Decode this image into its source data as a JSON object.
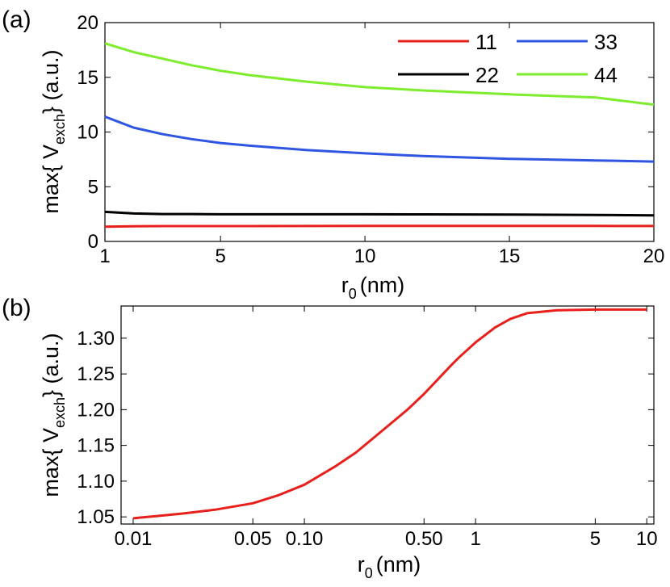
{
  "chart_data": [
    {
      "panel": "(a)",
      "type": "line",
      "xlabel_main": "r",
      "xlabel_sub": "0",
      "xlabel_unit": "(nm)",
      "ylabel_pre": "max{ V",
      "ylabel_sub": "exch",
      "ylabel_post": "} (a.u.)",
      "xlim": [
        1,
        20
      ],
      "ylim": [
        0,
        20
      ],
      "xticks": [
        1,
        5,
        10,
        15,
        20
      ],
      "xtick_labels": [
        "1",
        "5",
        "10",
        "15",
        "20"
      ],
      "yticks": [
        0,
        5,
        10,
        15,
        20
      ],
      "ytick_labels": [
        "0",
        "5",
        "10",
        "15",
        "20"
      ],
      "legend": {
        "placement": "top-right",
        "columns": 2
      },
      "series": [
        {
          "name": "11",
          "color": "#e8201c",
          "x": [
            1,
            2,
            3,
            4,
            5,
            6,
            8,
            10,
            12,
            15,
            18,
            20
          ],
          "y": [
            1.35,
            1.38,
            1.4,
            1.4,
            1.4,
            1.4,
            1.41,
            1.42,
            1.42,
            1.42,
            1.42,
            1.41
          ]
        },
        {
          "name": "22",
          "color": "#000000",
          "x": [
            1,
            2,
            3,
            4,
            5,
            6,
            8,
            10,
            12,
            15,
            18,
            20
          ],
          "y": [
            2.7,
            2.55,
            2.5,
            2.5,
            2.48,
            2.48,
            2.48,
            2.48,
            2.47,
            2.46,
            2.42,
            2.38
          ]
        },
        {
          "name": "33",
          "color": "#2f55e3",
          "x": [
            1,
            1.5,
            2,
            3,
            4,
            5,
            6,
            8,
            10,
            12,
            15,
            18,
            20
          ],
          "y": [
            11.4,
            10.9,
            10.4,
            9.8,
            9.35,
            9.0,
            8.75,
            8.35,
            8.05,
            7.8,
            7.55,
            7.4,
            7.3
          ]
        },
        {
          "name": "44",
          "color": "#7ded2e",
          "x": [
            1,
            1.5,
            2,
            3,
            4,
            5,
            6,
            8,
            10,
            12,
            15,
            18,
            20
          ],
          "y": [
            18.1,
            17.7,
            17.3,
            16.7,
            16.1,
            15.6,
            15.2,
            14.6,
            14.1,
            13.8,
            13.45,
            13.15,
            12.5
          ]
        }
      ]
    },
    {
      "panel": "(b)",
      "type": "line",
      "xscale": "log",
      "xlabel_main": "r",
      "xlabel_sub": "0",
      "xlabel_unit": "(nm)",
      "ylabel_pre": "max{ V",
      "ylabel_sub": "exch",
      "ylabel_post": "} (a.u.)",
      "xlim": [
        0.0085,
        11
      ],
      "ylim": [
        1.04,
        1.345
      ],
      "xticks": [
        0.01,
        0.05,
        0.1,
        0.5,
        1,
        5,
        10
      ],
      "xtick_labels": [
        "0.01",
        "0.05",
        "0.10",
        "0.50",
        "1",
        "5",
        "10"
      ],
      "yticks": [
        1.05,
        1.1,
        1.15,
        1.2,
        1.25,
        1.3
      ],
      "ytick_labels": [
        "1.05",
        "1.10",
        "1.15",
        "1.20",
        "1.25",
        "1.30"
      ],
      "series": [
        {
          "name": "11",
          "color": "#e8201c",
          "x": [
            0.01,
            0.015,
            0.02,
            0.03,
            0.05,
            0.07,
            0.1,
            0.15,
            0.2,
            0.3,
            0.4,
            0.5,
            0.6,
            0.7,
            0.8,
            1.0,
            1.3,
            1.6,
            2,
            3,
            5,
            10
          ],
          "y": [
            1.048,
            1.052,
            1.055,
            1.06,
            1.069,
            1.08,
            1.095,
            1.12,
            1.14,
            1.175,
            1.2,
            1.222,
            1.242,
            1.259,
            1.273,
            1.294,
            1.315,
            1.327,
            1.335,
            1.339,
            1.34,
            1.34
          ]
        }
      ]
    }
  ]
}
